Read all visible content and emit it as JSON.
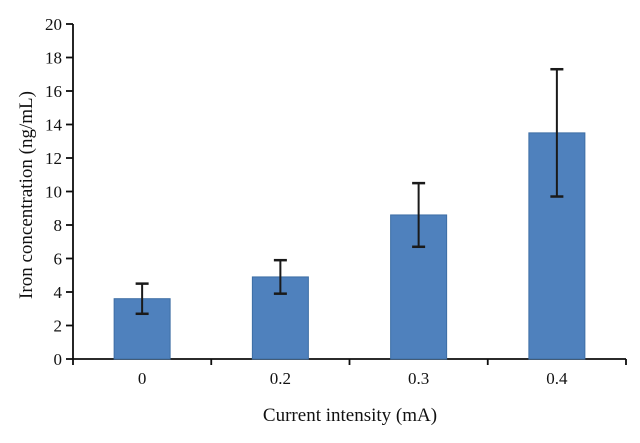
{
  "chart_data": {
    "type": "bar",
    "title": "",
    "categories": [
      "0",
      "0.2",
      "0.3",
      "0.4"
    ],
    "values": [
      3.6,
      4.9,
      8.6,
      13.5
    ],
    "errors": [
      0.9,
      1.0,
      1.9,
      3.8
    ],
    "xlabel": "Current intensity (mA)",
    "ylabel": "Iron concentration (ng/mL)",
    "ylim": [
      0,
      20
    ],
    "ytick_step": 2,
    "ytick_labels": [
      "0",
      "2",
      "4",
      "6",
      "8",
      "10",
      "12",
      "14",
      "16",
      "18",
      "20"
    ],
    "grid": false,
    "legend_position": "none",
    "bar_color": "#4f81bd",
    "bar_border_color": "#3d6ea5",
    "error_bar_color": "#1a1a1a",
    "axis_color": "#0d0d0d"
  }
}
